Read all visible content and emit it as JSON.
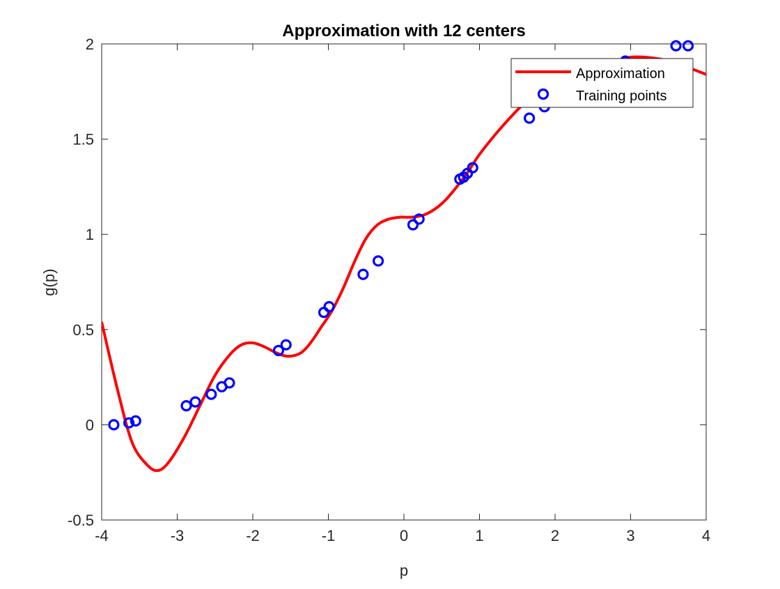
{
  "chart_data": {
    "type": "line",
    "title": "Approximation with 12 centers",
    "xlabel": "p",
    "ylabel": "g(p)",
    "xlim": [
      -4,
      4
    ],
    "ylim": [
      -0.5,
      2
    ],
    "xticks": [
      -4,
      -3,
      -2,
      -1,
      0,
      1,
      2,
      3,
      4
    ],
    "xtick_labels": [
      "-4",
      "-3",
      "-2",
      "-1",
      "0",
      "1",
      "2",
      "3",
      "4"
    ],
    "yticks": [
      -0.5,
      0,
      0.5,
      1,
      1.5,
      2
    ],
    "ytick_labels": [
      "-0.5",
      "0",
      "0.5",
      "1",
      "1.5",
      "2"
    ],
    "grid": false,
    "legend_position": "top-right",
    "series": [
      {
        "name": "Approximation",
        "kind": "line",
        "color": "#ff0000",
        "x": [
          -4.0,
          -3.8,
          -3.6,
          -3.4,
          -3.25,
          -3.1,
          -2.9,
          -2.7,
          -2.5,
          -2.3,
          -2.15,
          -2.0,
          -1.85,
          -1.7,
          -1.55,
          -1.4,
          -1.3,
          -1.2,
          -1.1,
          -0.95,
          -0.8,
          -0.65,
          -0.5,
          -0.35,
          -0.2,
          -0.05,
          0.1,
          0.25,
          0.4,
          0.55,
          0.7,
          0.85,
          1.0,
          1.2,
          1.4,
          1.6,
          1.8,
          2.0,
          2.2,
          2.4,
          2.6,
          2.8,
          3.0,
          3.2,
          3.4,
          3.6,
          3.8,
          4.0
        ],
        "y": [
          0.54,
          0.2,
          -0.09,
          -0.21,
          -0.24,
          -0.19,
          -0.06,
          0.1,
          0.26,
          0.37,
          0.42,
          0.43,
          0.41,
          0.38,
          0.36,
          0.37,
          0.4,
          0.45,
          0.51,
          0.6,
          0.72,
          0.86,
          0.98,
          1.05,
          1.08,
          1.09,
          1.09,
          1.1,
          1.13,
          1.18,
          1.25,
          1.33,
          1.42,
          1.52,
          1.61,
          1.69,
          1.74,
          1.77,
          1.8,
          1.84,
          1.88,
          1.91,
          1.93,
          1.93,
          1.92,
          1.9,
          1.87,
          1.84
        ]
      },
      {
        "name": "Training points",
        "kind": "scatter",
        "color": "#0000ff",
        "x": [
          -3.84,
          -3.64,
          -3.55,
          -2.88,
          -2.76,
          -2.55,
          -2.41,
          -2.31,
          -1.66,
          -1.56,
          -1.06,
          -0.99,
          -0.54,
          -0.34,
          0.12,
          0.2,
          0.74,
          0.79,
          0.84,
          0.91,
          1.66,
          1.86,
          2.93,
          3.6,
          3.76
        ],
        "y": [
          0.0,
          0.01,
          0.02,
          0.1,
          0.12,
          0.16,
          0.2,
          0.22,
          0.39,
          0.42,
          0.59,
          0.62,
          0.79,
          0.86,
          1.05,
          1.08,
          1.29,
          1.3,
          1.32,
          1.35,
          1.61,
          1.67,
          1.91,
          1.99,
          1.99
        ]
      }
    ]
  }
}
